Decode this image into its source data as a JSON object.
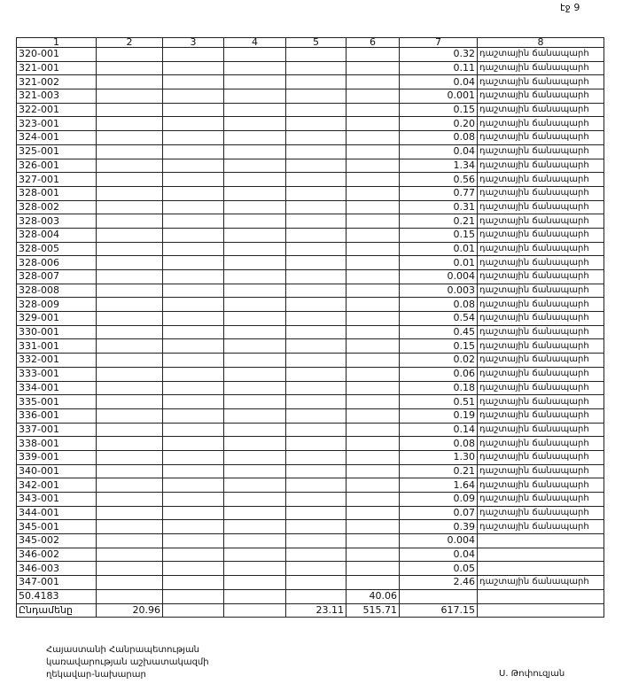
{
  "page_label": "էջ 9",
  "table": {
    "header": [
      "1",
      "2",
      "3",
      "4",
      "5",
      "6",
      "7",
      "8"
    ],
    "rows": [
      [
        "320-001",
        null,
        null,
        null,
        null,
        null,
        "0.32",
        "դաշտային ճանապարհ"
      ],
      [
        "321-001",
        null,
        null,
        null,
        null,
        null,
        "0.11",
        "դաշտային ճանապարհ"
      ],
      [
        "321-002",
        null,
        null,
        null,
        null,
        null,
        "0.04",
        "դաշտային ճանապարհ"
      ],
      [
        "321-003",
        null,
        null,
        null,
        null,
        null,
        "0.001",
        "դաշտային ճանապարհ"
      ],
      [
        "322-001",
        null,
        null,
        null,
        null,
        null,
        "0.15",
        "դաշտային ճանապարհ"
      ],
      [
        "323-001",
        null,
        null,
        null,
        null,
        null,
        "0.20",
        "դաշտային ճանապարհ"
      ],
      [
        "324-001",
        null,
        null,
        null,
        null,
        null,
        "0.08",
        "դաշտային ճանապարհ"
      ],
      [
        "325-001",
        null,
        null,
        null,
        null,
        null,
        "0.04",
        "դաշտային ճանապարհ"
      ],
      [
        "326-001",
        null,
        null,
        null,
        null,
        null,
        "1.34",
        "դաշտային ճանապարհ"
      ],
      [
        "327-001",
        null,
        null,
        null,
        null,
        null,
        "0.56",
        "դաշտային ճանապարհ"
      ],
      [
        "328-001",
        null,
        null,
        null,
        null,
        null,
        "0.77",
        "դաշտային ճանապարհ"
      ],
      [
        "328-002",
        null,
        null,
        null,
        null,
        null,
        "0.31",
        "դաշտային ճանապարհ"
      ],
      [
        "328-003",
        null,
        null,
        null,
        null,
        null,
        "0.21",
        "դաշտային ճանապարհ"
      ],
      [
        "328-004",
        null,
        null,
        null,
        null,
        null,
        "0.15",
        "դաշտային ճանապարհ"
      ],
      [
        "328-005",
        null,
        null,
        null,
        null,
        null,
        "0.01",
        "դաշտային ճանապարհ"
      ],
      [
        "328-006",
        null,
        null,
        null,
        null,
        null,
        "0.01",
        "դաշտային ճանապարհ"
      ],
      [
        "328-007",
        null,
        null,
        null,
        null,
        null,
        "0.004",
        "դաշտային ճանապարհ"
      ],
      [
        "328-008",
        null,
        null,
        null,
        null,
        null,
        "0.003",
        "դաշտային ճանապարհ"
      ],
      [
        "328-009",
        null,
        null,
        null,
        null,
        null,
        "0.08",
        "դաշտային ճանապարհ"
      ],
      [
        "329-001",
        null,
        null,
        null,
        null,
        null,
        "0.54",
        "դաշտային ճանապարհ"
      ],
      [
        "330-001",
        null,
        null,
        null,
        null,
        null,
        "0.45",
        "դաշտային ճանապարհ"
      ],
      [
        "331-001",
        null,
        null,
        null,
        null,
        null,
        "0.15",
        "դաշտային ճանապարհ"
      ],
      [
        "332-001",
        null,
        null,
        null,
        null,
        null,
        "0.02",
        "դաշտային ճանապարհ"
      ],
      [
        "333-001",
        null,
        null,
        null,
        null,
        null,
        "0.06",
        "դաշտային ճանապարհ"
      ],
      [
        "334-001",
        null,
        null,
        null,
        null,
        null,
        "0.18",
        "դաշտային ճանապարհ"
      ],
      [
        "335-001",
        null,
        null,
        null,
        null,
        null,
        "0.51",
        "դաշտային ճանապարհ"
      ],
      [
        "336-001",
        null,
        null,
        null,
        null,
        null,
        "0.19",
        "դաշտային ճանապարհ"
      ],
      [
        "337-001",
        null,
        null,
        null,
        null,
        null,
        "0.14",
        "դաշտային ճանապարհ"
      ],
      [
        "338-001",
        null,
        null,
        null,
        null,
        null,
        "0.08",
        "դաշտային ճանապարհ"
      ],
      [
        "339-001",
        null,
        null,
        null,
        null,
        null,
        "1.30",
        "դաշտային ճանապարհ"
      ],
      [
        "340-001",
        null,
        null,
        null,
        null,
        null,
        "0.21",
        "դաշտային ճանապարհ"
      ],
      [
        "342-001",
        null,
        null,
        null,
        null,
        null,
        "1.64",
        "դաշտային ճանապարհ"
      ],
      [
        "343-001",
        null,
        null,
        null,
        null,
        null,
        "0.09",
        "դաշտային ճանապարհ"
      ],
      [
        "344-001",
        null,
        null,
        null,
        null,
        null,
        "0.07",
        "դաշտային ճանապարհ"
      ],
      [
        "345-001",
        null,
        null,
        null,
        null,
        null,
        "0.39",
        "դաշտային ճանապարհ"
      ],
      [
        "345-002",
        null,
        null,
        null,
        null,
        null,
        "0.004",
        null
      ],
      [
        "346-002",
        null,
        null,
        null,
        null,
        null,
        "0.04",
        null
      ],
      [
        "346-003",
        null,
        null,
        null,
        null,
        null,
        "0.05",
        null
      ],
      [
        "347-001",
        null,
        null,
        null,
        null,
        null,
        "2.46",
        "դաշտային ճանապարհ"
      ],
      [
        "50.4183",
        null,
        null,
        null,
        null,
        "40.06",
        null,
        null
      ],
      [
        "Ընդամենը",
        "20.96",
        null,
        null,
        "23.11",
        "515.71",
        "617.15",
        null
      ]
    ]
  },
  "footer": {
    "position": [
      "Հայաստանի Հանրապետության",
      "կառավարության աշխատակազմի",
      "ղեկավար-նախարար"
    ],
    "signature": "Ս. Թոփուզյան"
  }
}
